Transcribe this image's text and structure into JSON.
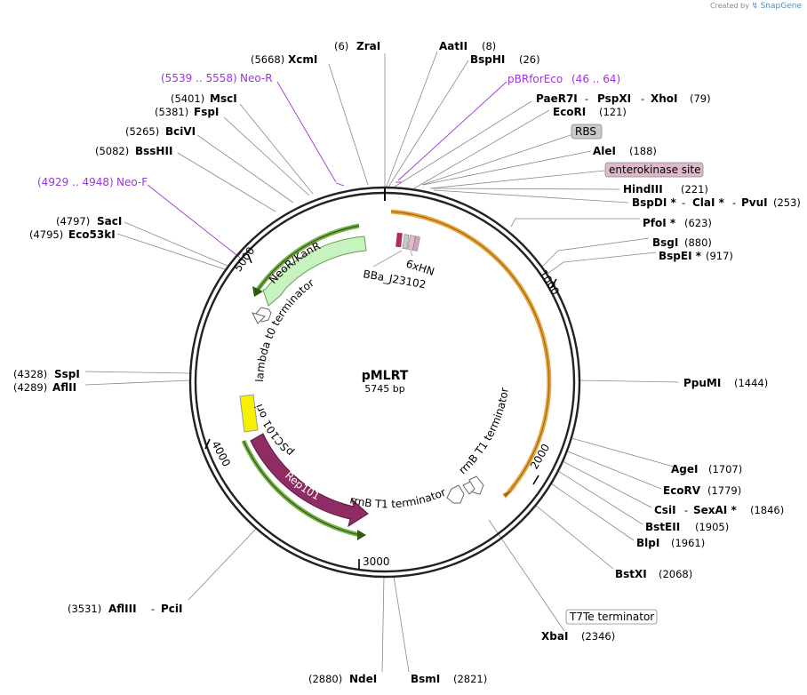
{
  "watermark": {
    "created_by": "Created by",
    "brand": "SnapGene"
  },
  "plasmid": {
    "name": "pMLRT",
    "length": "5745 bp"
  },
  "ticks": [
    "1000",
    "2000",
    "3000",
    "4000",
    "5000"
  ],
  "sites": [
    {
      "enzyme": "ZraI",
      "pos": "(6)"
    },
    {
      "enzyme": "XcmI",
      "pos": "(5668)"
    },
    {
      "enzyme": "AatII",
      "pos": "(8)"
    },
    {
      "enzyme": "BspHI",
      "pos": "(26)"
    },
    {
      "enzyme": "MscI",
      "pos": "(5401)"
    },
    {
      "enzyme": "FspI",
      "pos": "(5381)"
    },
    {
      "enzyme": "PaeR7I",
      "pos": ""
    },
    {
      "enzyme": "PspXI",
      "pos": ""
    },
    {
      "enzyme": "XhoI",
      "pos": "(79)"
    },
    {
      "enzyme": "EcoRI",
      "pos": "(121)"
    },
    {
      "enzyme": "BciVI",
      "pos": "(5265)"
    },
    {
      "enzyme": "BssHII",
      "pos": "(5082)"
    },
    {
      "enzyme": "AleI",
      "pos": "(188)"
    },
    {
      "enzyme": "HindIII",
      "pos": "(221)"
    },
    {
      "enzyme": "BspDI *",
      "pos": ""
    },
    {
      "enzyme": "ClaI *",
      "pos": ""
    },
    {
      "enzyme": "PvuI",
      "pos": "(253)"
    },
    {
      "enzyme": "SacI",
      "pos": "(4797)"
    },
    {
      "enzyme": "Eco53kI",
      "pos": "(4795)"
    },
    {
      "enzyme": "PfoI *",
      "pos": "(623)"
    },
    {
      "enzyme": "BsgI",
      "pos": "(880)"
    },
    {
      "enzyme": "BspEI *",
      "pos": "(917)"
    },
    {
      "enzyme": "SspI",
      "pos": "(4328)"
    },
    {
      "enzyme": "AflII",
      "pos": "(4289)"
    },
    {
      "enzyme": "PpuMI",
      "pos": "(1444)"
    },
    {
      "enzyme": "AgeI",
      "pos": "(1707)"
    },
    {
      "enzyme": "EcoRV",
      "pos": "(1779)"
    },
    {
      "enzyme": "CsiI",
      "pos": ""
    },
    {
      "enzyme": "SexAI *",
      "pos": "(1846)"
    },
    {
      "enzyme": "BstEII",
      "pos": "(1905)"
    },
    {
      "enzyme": "BlpI",
      "pos": "(1961)"
    },
    {
      "enzyme": "BstXI",
      "pos": "(2068)"
    },
    {
      "enzyme": "XbaI",
      "pos": "(2346)"
    },
    {
      "enzyme": "AflIII",
      "pos": "(3531)"
    },
    {
      "enzyme": "PciI",
      "pos": ""
    },
    {
      "enzyme": "NdeI",
      "pos": "(2880)"
    },
    {
      "enzyme": "BsmI",
      "pos": "(2821)"
    }
  ],
  "separator": "-",
  "primers": [
    {
      "name": "Neo-R",
      "range": "(5539 .. 5558)"
    },
    {
      "name": "Neo-F",
      "range": "(4929 .. 4948)"
    },
    {
      "name": "pBRforEco",
      "range": "(46 .. 64)"
    }
  ],
  "boxed_labels": {
    "rbs": "RBS",
    "enterokinase": "enterokinase site",
    "t7te": "T7Te terminator"
  },
  "features": {
    "neo": "NeoR/KanR",
    "lambda": "lambda t0 terminator",
    "bba": "BBa_J23102",
    "his": "6xHN",
    "psc": "pSC101 ori",
    "rep": "Rep101",
    "rrnb1": "rrnB T1 terminator",
    "rrnb2": "rrnB T1 terminator"
  },
  "colors": {
    "backbone": "#222222",
    "neo": "#c8f2c0",
    "neo_edge": "#6a9a55",
    "rep": "#8e2c63",
    "ori": "#f7f000",
    "orange_arc": "#e8a540",
    "green_arc": "#76b04a",
    "primer": "#9a37d8",
    "enterokinase_fill": "#e0b8cc",
    "rbs_fill": "#c9c9c9"
  }
}
